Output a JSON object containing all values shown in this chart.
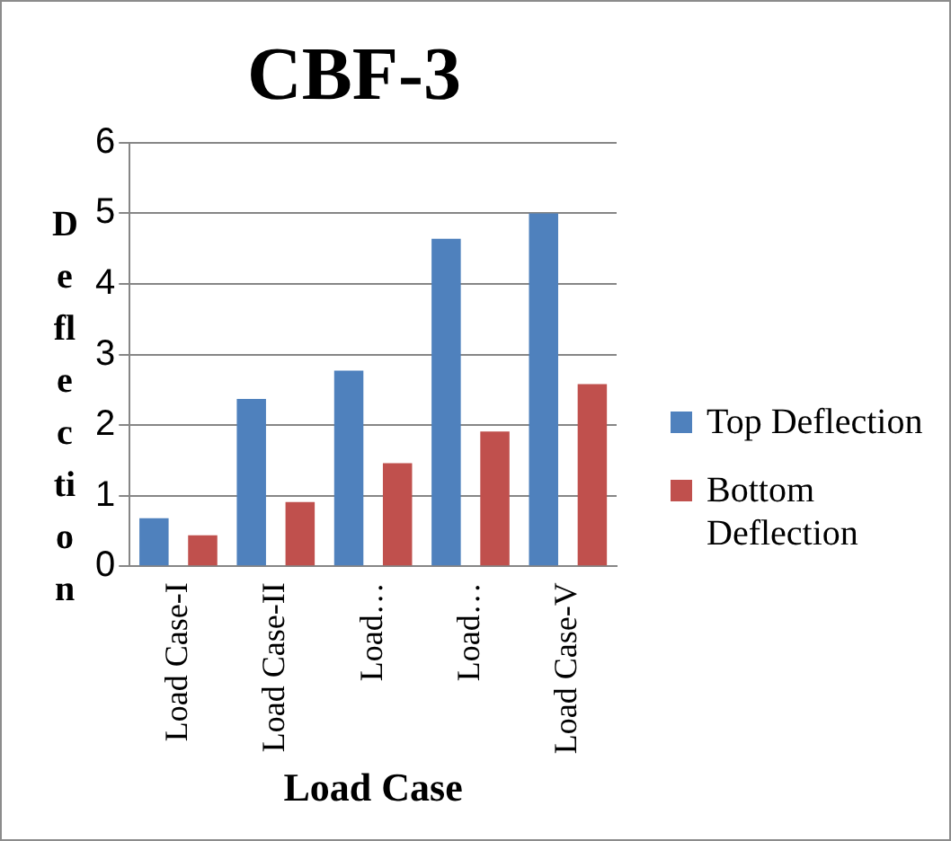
{
  "chart_data": {
    "type": "bar",
    "title": "CBF-3",
    "xlabel": "Load Case",
    "ylabel": "Deflection",
    "categories": [
      "Load Case-I",
      "Load Case-II",
      "Load…",
      "Load…",
      "Load Case-V"
    ],
    "series": [
      {
        "name": "Top Deflection",
        "color": "#4f81bd",
        "values": [
          0.68,
          2.37,
          2.77,
          4.64,
          5.0
        ]
      },
      {
        "name": "Bottom Deflection",
        "color": "#c0504d",
        "values": [
          0.44,
          0.91,
          1.46,
          1.91,
          2.58
        ]
      }
    ],
    "ylim": [
      0,
      6
    ],
    "yticks": [
      0,
      1,
      2,
      3,
      4,
      5,
      6
    ],
    "grid": "y",
    "legend": "right"
  }
}
